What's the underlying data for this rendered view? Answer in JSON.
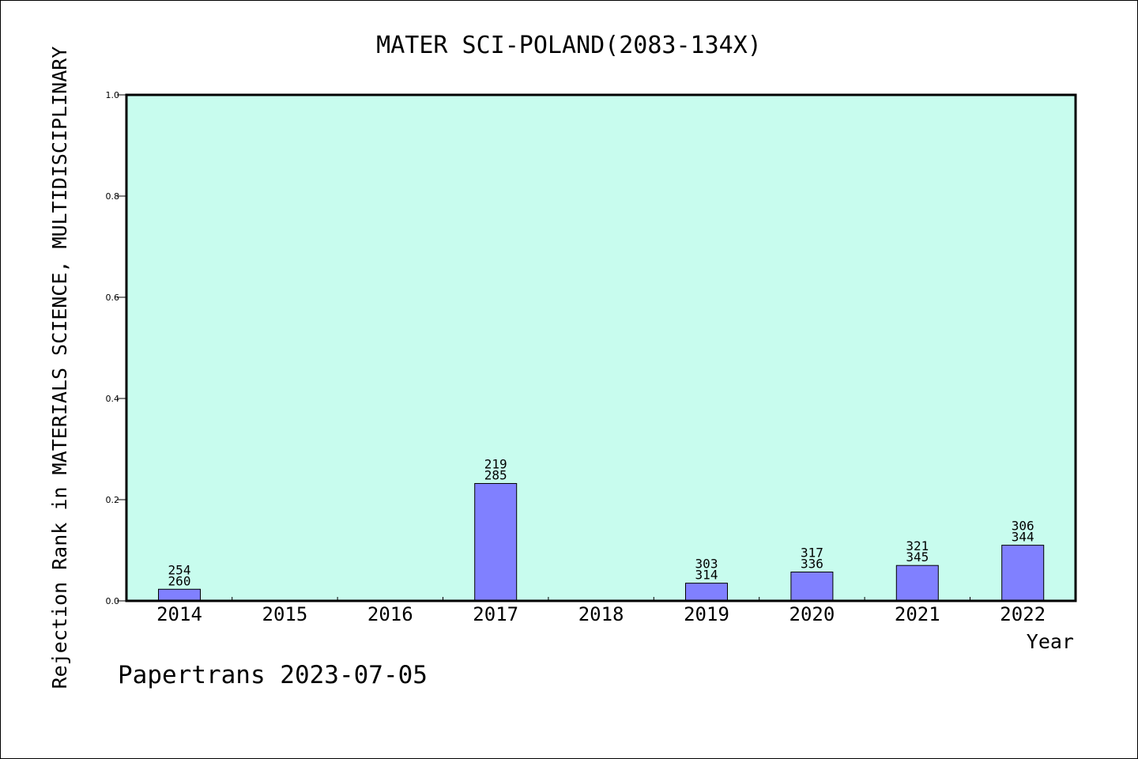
{
  "chart_data": {
    "type": "bar",
    "title": "MATER SCI-POLAND(2083-134X)",
    "xlabel": "Year",
    "ylabel": "Rejection Rank in MATERIALS SCIENCE, MULTIDISCIPLINARY",
    "ylim": [
      0,
      1.0
    ],
    "yticks": [
      "0.0",
      "0.2",
      "0.4",
      "0.6",
      "0.8",
      "1.0"
    ],
    "categories": [
      "2014",
      "2015",
      "2016",
      "2017",
      "2018",
      "2019",
      "2020",
      "2021",
      "2022"
    ],
    "values": [
      0.023,
      null,
      null,
      0.232,
      null,
      0.035,
      0.057,
      0.07,
      0.11
    ],
    "labels_top": [
      "254",
      "",
      "",
      "219",
      "",
      "303",
      "317",
      "321",
      "306"
    ],
    "labels_bottom": [
      "260",
      "",
      "",
      "285",
      "",
      "314",
      "336",
      "345",
      "344"
    ],
    "colors": {
      "plot_bg": "#c8fcee",
      "bar": "#8080ff"
    }
  },
  "footer": {
    "text": "Papertrans 2023-07-05"
  }
}
